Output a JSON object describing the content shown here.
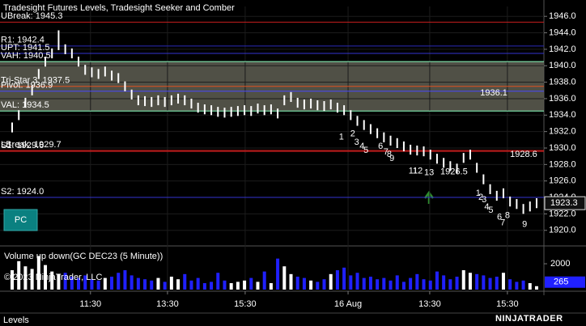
{
  "chart_data": {
    "type": "candlestick",
    "title": "Tradesight Futures Levels, Tradesight Seeker and Comber",
    "ylim": [
      1918.5,
      1947.2
    ],
    "yticks": [
      {
        "value": 1920,
        "label": "1920.0"
      },
      {
        "value": 1922,
        "label": "1922.0"
      },
      {
        "value": 1924,
        "label": "1924.0"
      },
      {
        "value": 1926,
        "label": "1926.0"
      },
      {
        "value": 1928,
        "label": "1928.0"
      },
      {
        "value": 1930,
        "label": "1930.0"
      },
      {
        "value": 1932,
        "label": "1932.0"
      },
      {
        "value": 1934,
        "label": "1934.0"
      },
      {
        "value": 1936,
        "label": "1936.0"
      },
      {
        "value": 1938,
        "label": "1938.0"
      },
      {
        "value": 1940,
        "label": "1940.0"
      },
      {
        "value": 1942,
        "label": "1942.0"
      },
      {
        "value": 1944,
        "label": "1944.0"
      },
      {
        "value": 1946,
        "label": "1946.0"
      }
    ],
    "xlim": [
      -1.83,
      80.1
    ],
    "xticks": [
      {
        "value": 11.8,
        "label": "11:30"
      },
      {
        "value": 23.4,
        "label": "13:30"
      },
      {
        "value": 35.1,
        "label": "15:30"
      },
      {
        "value": 50.6,
        "label": "16 Aug"
      },
      {
        "value": 62.9,
        "label": "13:30"
      },
      {
        "value": 74.6,
        "label": "15:30"
      }
    ],
    "grid": true,
    "candle_color": "#ffffff",
    "high": [
      1933.1,
      1934.6,
      1936.1,
      1937.6,
      1939.6,
      1941.1,
      1942.1,
      1944.3,
      1942.6,
      1942.1,
      1941.1,
      1940.1,
      1939.8,
      1939.6,
      1939.9,
      1939.4,
      1939.1,
      1938.1,
      1937.1,
      1936.4,
      1936.3,
      1936.2,
      1936.4,
      1936.2,
      1936.4,
      1936.6,
      1936.4,
      1936.0,
      1935.5,
      1935.3,
      1935.2,
      1935.0,
      1934.9,
      1935.0,
      1935.1,
      1935.2,
      1935.1,
      1935.4,
      1935.2,
      1935.3,
      1934.8,
      1936.4,
      1936.8,
      1936.1,
      1935.9,
      1936.0,
      1935.8,
      1935.7,
      1935.9,
      1935.5,
      1935.2,
      1934.6,
      1933.9,
      1933.4,
      1932.9,
      1932.4,
      1931.9,
      1931.5,
      1931.2,
      1930.8,
      1930.4,
      1930.3,
      1930.2,
      1929.8,
      1929.3,
      1928.8,
      1928.4,
      1928.1,
      1929.4,
      1929.8,
      1928.2,
      1926.8,
      1925.6,
      1924.8,
      1925.1,
      1924.1,
      1923.8,
      1923.2,
      1923.5,
      1923.9
    ],
    "low": [
      1931.9,
      1933.4,
      1934.9,
      1936.4,
      1938.4,
      1939.9,
      1940.9,
      1941.9,
      1941.4,
      1940.9,
      1939.9,
      1938.9,
      1938.6,
      1938.4,
      1938.7,
      1938.2,
      1937.9,
      1936.9,
      1935.9,
      1935.2,
      1935.1,
      1935.0,
      1935.2,
      1935.0,
      1935.2,
      1935.4,
      1935.2,
      1934.8,
      1934.3,
      1934.1,
      1934.0,
      1933.8,
      1933.7,
      1933.8,
      1933.9,
      1934.0,
      1933.9,
      1934.2,
      1934.0,
      1934.1,
      1933.6,
      1935.2,
      1935.6,
      1934.9,
      1934.7,
      1934.8,
      1934.6,
      1934.5,
      1934.7,
      1934.3,
      1934.0,
      1933.4,
      1932.7,
      1932.2,
      1931.7,
      1931.2,
      1930.7,
      1930.3,
      1930.0,
      1929.6,
      1929.2,
      1929.1,
      1929.0,
      1928.6,
      1928.1,
      1927.6,
      1927.2,
      1926.9,
      1928.2,
      1928.6,
      1927.0,
      1925.6,
      1924.4,
      1923.6,
      1923.9,
      1922.9,
      1922.6,
      1922.0,
      1922.3,
      1922.7
    ],
    "zone": {
      "low": 1934.5,
      "high": 1940.5,
      "color": "#5e5e52"
    },
    "levels": [
      {
        "label": "UBreak: 1945.3",
        "value": 1945.3,
        "color": "#c81e1e"
      },
      {
        "label": "R1: 1942.4",
        "value": 1942.4,
        "color": "#2a2ab8"
      },
      {
        "label": "UPT: 1941.5",
        "value": 1941.5,
        "color": "#3434d0"
      },
      {
        "label": "VAH: 1940.5",
        "value": 1940.5,
        "color": "#8affc0"
      },
      {
        "label": "Tri-Star 3: 1937.5",
        "value": 1937.5,
        "color": "#e0501e"
      },
      {
        "label": "Pivot: 1936.9",
        "value": 1936.9,
        "color": "#4848ff"
      },
      {
        "label": "VAL: 1934.5",
        "value": 1934.5,
        "color": "#8affc0"
      },
      {
        "label": "LBreak: 1929.7",
        "value": 1929.7,
        "color": "#c81e1e"
      },
      {
        "label": "S1: 1929.6",
        "value": 1929.6,
        "color": "#c81e1e"
      },
      {
        "label": "S2: 1924.0",
        "value": 1924.0,
        "color": "#3434d0"
      }
    ],
    "price_notes": [
      {
        "price": 1936.1,
        "bar": 70.5,
        "color": "#2e8b2e"
      },
      {
        "price": 1928.6,
        "bar": 75,
        "color": "#2e8b2e"
      },
      {
        "price": 1926.5,
        "bar": 64.5,
        "color": "#e040e0"
      }
    ],
    "counts": [
      {
        "text": "1",
        "bar": 49.6,
        "price": 1931.3
      },
      {
        "text": "2",
        "bar": 51.3,
        "price": 1931.7
      },
      {
        "text": "3",
        "bar": 51.9,
        "price": 1930.7
      },
      {
        "text": "4",
        "bar": 52.7,
        "price": 1930.2
      },
      {
        "text": "5",
        "bar": 53.3,
        "price": 1929.7
      },
      {
        "text": "6",
        "bar": 55.5,
        "price": 1930.2
      },
      {
        "text": "7",
        "bar": 56.3,
        "price": 1929.5
      },
      {
        "text": "8",
        "bar": 56.8,
        "price": 1929.2
      },
      {
        "text": "9",
        "bar": 57.2,
        "price": 1928.7
      },
      {
        "text": "11",
        "bar": 60.4,
        "price": 1927.2
      },
      {
        "text": "12",
        "bar": 61.1,
        "price": 1927.2
      },
      {
        "text": "13",
        "bar": 62.8,
        "price": 1927.0
      },
      {
        "text": "1",
        "bar": 70.2,
        "price": 1924.5
      },
      {
        "text": "2",
        "bar": 70.6,
        "price": 1924.0
      },
      {
        "text": "3",
        "bar": 71.1,
        "price": 1923.7
      },
      {
        "text": "4",
        "bar": 71.5,
        "price": 1922.8
      },
      {
        "text": "5",
        "bar": 72.1,
        "price": 1922.4
      },
      {
        "text": "6",
        "bar": 73.4,
        "price": 1921.6
      },
      {
        "text": "7",
        "bar": 73.9,
        "price": 1920.9
      },
      {
        "text": "8",
        "bar": 74.6,
        "price": 1921.8
      },
      {
        "text": "9",
        "bar": 77.2,
        "price": 1920.7
      }
    ],
    "count_color": "#28e0e0",
    "last_price": 1923.3,
    "volume": {
      "title": "Volume up down(GC DEC23 (5 Minute))",
      "ylim": [
        0,
        3380
      ],
      "yticks": [
        2000
      ],
      "up_color": "#ffffff",
      "down_color": "#2020ff",
      "values": [
        1500,
        2200,
        1800,
        1600,
        2600,
        1900,
        1400,
        1200,
        1300,
        1000,
        900,
        1100,
        800,
        700,
        900,
        1000,
        1300,
        1500,
        1100,
        900,
        800,
        700,
        900,
        600,
        1000,
        800,
        1200,
        700,
        900,
        500,
        600,
        1300,
        700,
        500,
        600,
        700,
        900,
        600,
        1400,
        500,
        2400,
        1800,
        1200,
        1000,
        900,
        700,
        600,
        800,
        1200,
        1500,
        1700,
        1100,
        1300,
        900,
        1000,
        800,
        900,
        700,
        1100,
        600,
        900,
        1200,
        800,
        700,
        1400,
        1100,
        800,
        1000,
        1500,
        1300,
        1200,
        1100,
        900,
        1000,
        1300,
        800,
        600,
        700,
        500,
        265
      ],
      "last": 265
    },
    "button": "PC",
    "copyright": "© 2023 NinjaTrader, LLC",
    "footer": "Levels",
    "logo": "NINJATRADER"
  }
}
